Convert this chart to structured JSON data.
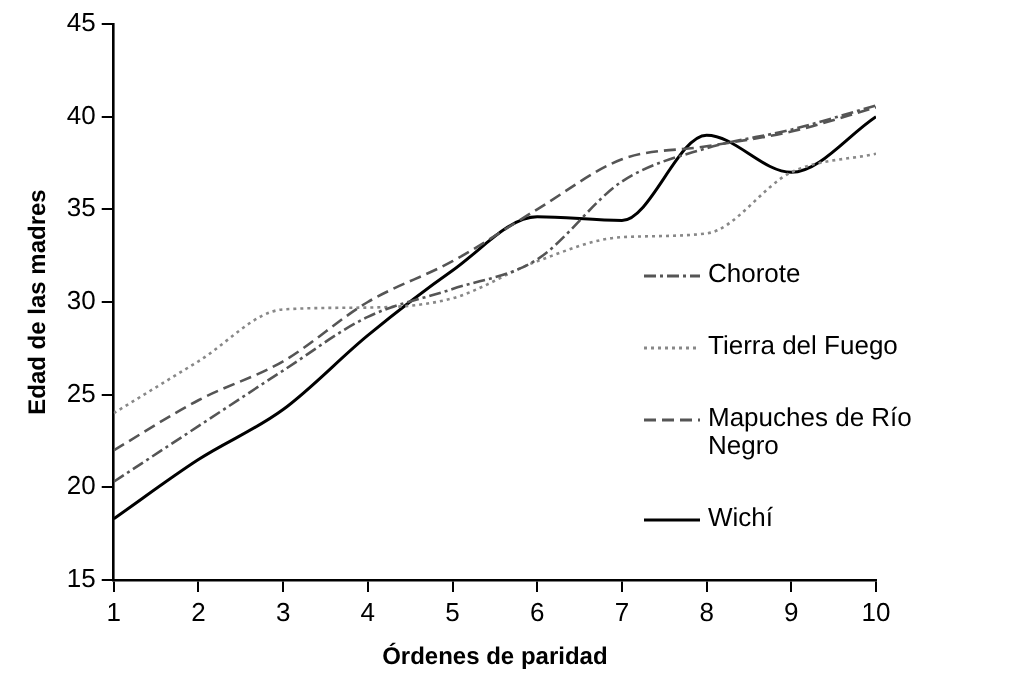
{
  "chart_data": {
    "type": "line",
    "xlabel": "Órdenes de paridad",
    "ylabel": "Edad de las madres",
    "x": [
      1,
      2,
      3,
      4,
      5,
      6,
      7,
      8,
      9,
      10
    ],
    "xlim": [
      1,
      10
    ],
    "xticks": [
      1,
      2,
      3,
      4,
      5,
      6,
      7,
      8,
      9,
      10
    ],
    "ylim": [
      15,
      45
    ],
    "yticks": [
      15,
      20,
      25,
      30,
      35,
      40,
      45
    ],
    "grid": false,
    "legend": "right",
    "marker": "none",
    "series": [
      {
        "name": "Chorote",
        "color": "#555555",
        "line_style": "dashdot",
        "values": [
          20.3,
          23.3,
          26.3,
          29.2,
          30.7,
          32.3,
          36.5,
          38.3,
          39.3,
          40.6
        ]
      },
      {
        "name": "Tierra del Fuego",
        "color": "#888888",
        "line_style": "dotted",
        "values": [
          24,
          26.8,
          29.6,
          29.7,
          30.2,
          32.2,
          33.5,
          33.7,
          37,
          38
        ]
      },
      {
        "name": "Mapuches de Río Negro",
        "color": "#555555",
        "line_style": "dashed",
        "values": [
          22,
          24.7,
          26.8,
          30,
          32.2,
          35,
          37.7,
          38.4,
          39.2,
          40.5
        ]
      },
      {
        "name": "Wichí",
        "color": "#000000",
        "line_style": "solid",
        "values": [
          18.3,
          21.5,
          24.2,
          28.2,
          31.7,
          34.6,
          34.4,
          39,
          37,
          40
        ]
      }
    ]
  }
}
